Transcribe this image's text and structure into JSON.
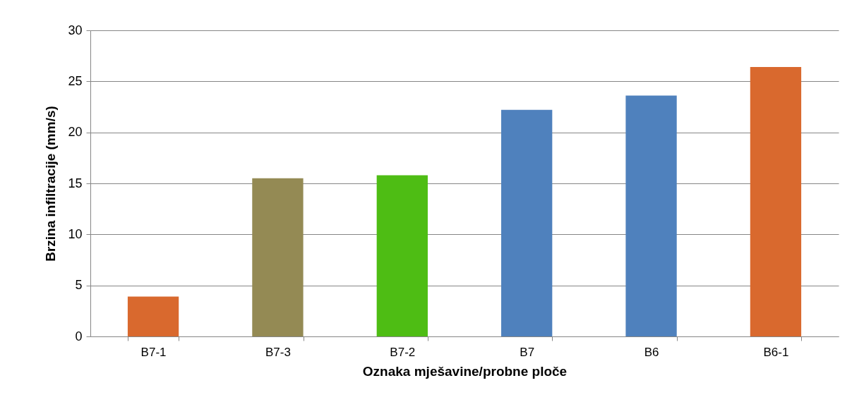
{
  "chart_data": {
    "type": "bar",
    "xlabel": "Oznaka mješavine/probne ploče",
    "ylabel": "Brzina infiltracije (mm/s)",
    "categories": [
      "B7-1",
      "B7-3",
      "B7-2",
      "B7",
      "B6",
      "B6-1"
    ],
    "values": [
      3.9,
      15.5,
      15.8,
      22.2,
      23.6,
      26.4
    ],
    "colors": [
      "#d9692e",
      "#948a54",
      "#4ebd14",
      "#4f81bd",
      "#4f81bd",
      "#d9692e"
    ],
    "ylim": [
      0,
      30
    ],
    "yticks": [
      0,
      5,
      10,
      15,
      20,
      25,
      30
    ],
    "grid": "y",
    "legend": false
  }
}
